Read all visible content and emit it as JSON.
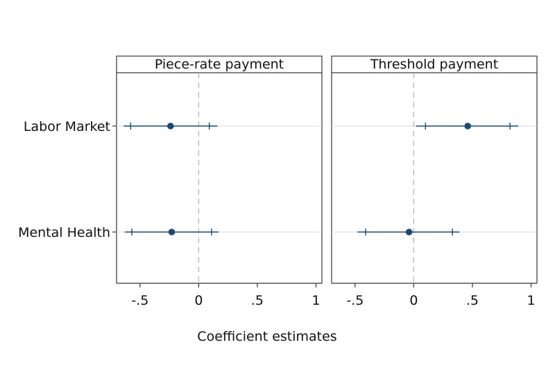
{
  "chart_data": {
    "type": "scatter",
    "subtype": "coefficient-plot",
    "xlabel": "Coefficient estimates",
    "categories": [
      "Labor Market",
      "Mental Health"
    ],
    "x_ticks": [
      -0.5,
      0,
      0.5,
      1
    ],
    "x_tick_labels": [
      "-.5",
      "0",
      ".5",
      "1"
    ],
    "xlim": [
      -0.7,
      1.05
    ],
    "reference_line": 0,
    "grid": "horizontal lines at categories",
    "colors": {
      "marker": "#1a4a6e",
      "ci": "#1a4a6e",
      "grid": "#d9d9d9",
      "refline": "#b0b0b0"
    },
    "panels": [
      {
        "title": "Piece-rate payment",
        "estimates": [
          {
            "category": "Labor Market",
            "coef": -0.24,
            "ci90": [
              -0.58,
              0.09
            ],
            "ci95": [
              -0.64,
              0.16
            ]
          },
          {
            "category": "Mental Health",
            "coef": -0.23,
            "ci90": [
              -0.57,
              0.11
            ],
            "ci95": [
              -0.63,
              0.17
            ]
          }
        ]
      },
      {
        "title": "Threshold payment",
        "estimates": [
          {
            "category": "Labor Market",
            "coef": 0.46,
            "ci90": [
              0.1,
              0.82
            ],
            "ci95": [
              0.02,
              0.89
            ]
          },
          {
            "category": "Mental Health",
            "coef": -0.04,
            "ci90": [
              -0.41,
              0.33
            ],
            "ci95": [
              -0.48,
              0.39
            ]
          }
        ]
      }
    ]
  }
}
